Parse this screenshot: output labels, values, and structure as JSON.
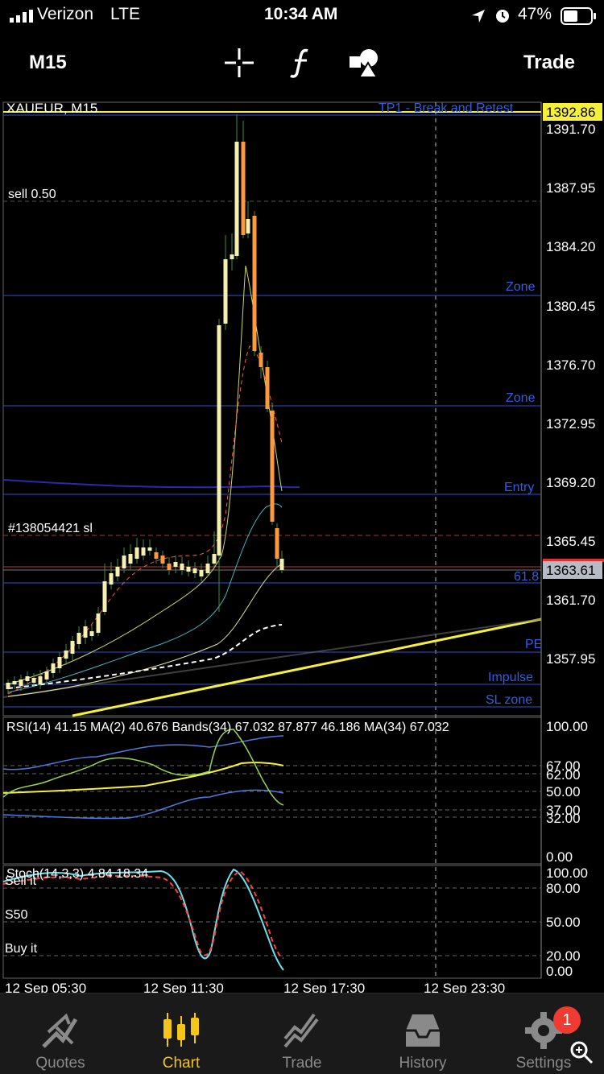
{
  "status_bar": {
    "carrier": "Verizon",
    "network": "LTE",
    "time": "10:34 AM",
    "battery": "47%"
  },
  "toolbar": {
    "timeframe": "M15",
    "trade_label": "Trade",
    "icons": [
      "crosshair-icon",
      "function-icon",
      "objects-icon"
    ]
  },
  "chart": {
    "symbol_label": "XAUEUR, M15",
    "top_price_label": "1392.86",
    "current_price_label": "1363.61",
    "price_ticks": [
      "1391.70",
      "1387.95",
      "1384.20",
      "1380.45",
      "1376.70",
      "1372.95",
      "1369.20",
      "1365.45",
      "1361.70",
      "1357.95"
    ],
    "level_labels": [
      "TP1 - Break and Retest",
      "Zone",
      "Zone",
      "Entry",
      "61.8",
      "PE",
      "Impulse",
      "SL zone"
    ],
    "order_labels": [
      "sell 0.50",
      "#138054421 sl"
    ],
    "colors": {
      "bull": "#f5f0b0",
      "bear": "#ff9a3c",
      "level": "#2f4fd0",
      "trend": "#f7f03a"
    }
  },
  "rsi": {
    "header": "RSI(14) 41.15 MA(2) 40.676 Bands(34) 67.032 87.877 46.186 MA(34) 67.032",
    "ticks": [
      "100.00",
      "67.00",
      "62.00",
      "50.00",
      "37.00",
      "32.00",
      "0.00"
    ]
  },
  "stoch": {
    "header": "Stoch(14,3,3) 4.84 18.34",
    "ticks": [
      "100.00",
      "80.00",
      "50.00",
      "20.00",
      "0.00"
    ],
    "level_labels": [
      "Sell it",
      "S50",
      "Buy it"
    ]
  },
  "time_axis": [
    "12 Sep 05:30",
    "12 Sep 11:30",
    "12 Sep 17:30",
    "12 Sep 23:30"
  ],
  "tabs": [
    {
      "label": "Quotes",
      "icon": "quotes-icon"
    },
    {
      "label": "Chart",
      "icon": "chart-icon",
      "active": true
    },
    {
      "label": "Trade",
      "icon": "trade-icon"
    },
    {
      "label": "History",
      "icon": "history-icon"
    },
    {
      "label": "Settings",
      "icon": "settings-icon"
    }
  ],
  "settings_badge": "1"
}
